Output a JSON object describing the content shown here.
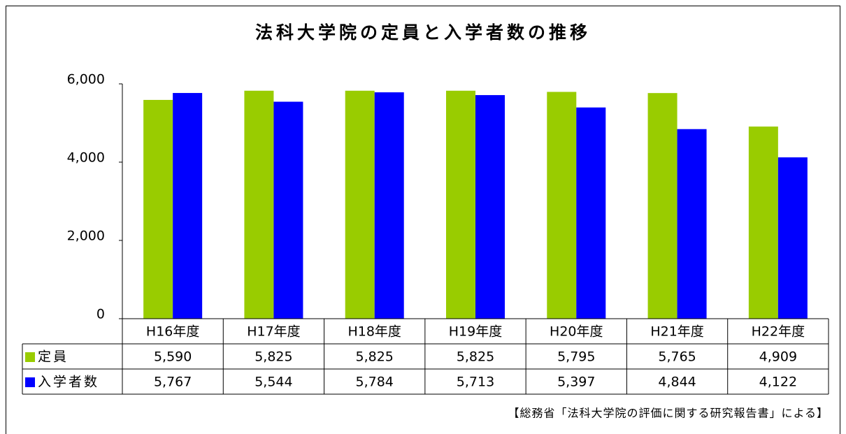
{
  "chart_data": {
    "type": "bar",
    "title": "法科大学院の定員と入学者数の推移",
    "categories": [
      "H16年度",
      "H17年度",
      "H18年度",
      "H19年度",
      "H20年度",
      "H21年度",
      "H22年度"
    ],
    "series": [
      {
        "name": "定員",
        "color": "#99cc00",
        "values": [
          5590,
          5825,
          5825,
          5825,
          5795,
          5765,
          4909
        ],
        "value_labels": [
          "5,590",
          "5,825",
          "5,825",
          "5,825",
          "5,795",
          "5,765",
          "4,909"
        ]
      },
      {
        "name": "入学者数",
        "color": "#0000ff",
        "values": [
          5767,
          5544,
          5784,
          5713,
          5397,
          4844,
          4122
        ],
        "value_labels": [
          "5,767",
          "5,544",
          "5,784",
          "5,713",
          "5,397",
          "4,844",
          "4,122"
        ]
      }
    ],
    "ylim": [
      0,
      6000
    ],
    "yticks": [
      0,
      {
        "value": 2000,
        "label": "2,000"
      },
      {
        "value": 4000,
        "label": "4,000"
      },
      {
        "value": 6000,
        "label": "6,000"
      }
    ],
    "grid": false,
    "source": "【総務省「法科大学院の評価に関する研究報告書」による】"
  }
}
